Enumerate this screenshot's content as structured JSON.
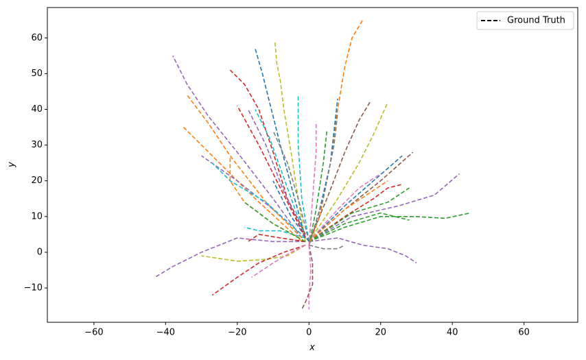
{
  "chart_data": {
    "type": "line",
    "xlabel": "x",
    "ylabel": "y",
    "line_style": "dashed",
    "xlim": [
      -73,
      75
    ],
    "ylim": [
      -19.6,
      68.5
    ],
    "xticks": [
      {
        "value": -60,
        "label": "−60"
      },
      {
        "value": -40,
        "label": "−40"
      },
      {
        "value": -20,
        "label": "−20"
      },
      0,
      20,
      40,
      60
    ],
    "yticks": [
      {
        "value": -10,
        "label": "−10"
      },
      0,
      10,
      20,
      30,
      40,
      50,
      60
    ],
    "legend": {
      "label": "Ground Truth",
      "color": "#000000",
      "position": "upper right"
    },
    "series": [
      {
        "color": "#ff7f0e",
        "x": [
          0,
          3,
          6,
          8,
          10,
          12,
          15
        ],
        "y": [
          2,
          10,
          25,
          40,
          52,
          60,
          65
        ]
      },
      {
        "color": "#bcbd22",
        "x": [
          -1,
          -3,
          -5,
          -7,
          -8,
          -9,
          -9.5
        ],
        "y": [
          3,
          15,
          28,
          40,
          48,
          53,
          59
        ]
      },
      {
        "color": "#1f77b4",
        "x": [
          -1,
          -4,
          -8,
          -11,
          -13,
          -15
        ],
        "y": [
          4,
          15,
          30,
          42,
          50,
          57
        ]
      },
      {
        "color": "#d62728",
        "x": [
          -1,
          -6,
          -10,
          -14,
          -18,
          -22
        ],
        "y": [
          5,
          15,
          28,
          40,
          47,
          51
        ]
      },
      {
        "color": "#9467bd",
        "x": [
          -2,
          -10,
          -20,
          -28,
          -34,
          -38
        ],
        "y": [
          4,
          15,
          28,
          38,
          47,
          55
        ]
      },
      {
        "color": "#ff7f0e",
        "x": [
          -2,
          -12,
          -22,
          -28,
          -34
        ],
        "y": [
          4,
          14,
          27,
          36,
          44
        ]
      },
      {
        "color": "#ff7f0e",
        "x": [
          -2,
          -15,
          -25,
          -35
        ],
        "y": [
          3,
          15,
          25,
          35
        ]
      },
      {
        "color": "#9467bd",
        "x": [
          -1,
          -10,
          -20,
          -30
        ],
        "y": [
          4,
          12,
          20,
          27
        ]
      },
      {
        "color": "#17becf",
        "x": [
          -1,
          -12,
          -22,
          -27
        ],
        "y": [
          4,
          14,
          20,
          25
        ]
      },
      {
        "color": "#9467bd",
        "x": [
          -1,
          -10,
          -20,
          -30,
          -38,
          -43
        ],
        "y": [
          3,
          3,
          4,
          0,
          -4,
          -7
        ]
      },
      {
        "color": "#bcbd22",
        "x": [
          -1,
          -6,
          -12,
          -20,
          -30
        ],
        "y": [
          2,
          -1,
          -2,
          -2.5,
          -1
        ]
      },
      {
        "color": "#d62728",
        "x": [
          -1,
          -7,
          -14,
          -20,
          -27
        ],
        "y": [
          2,
          0,
          -3,
          -7,
          -12
        ]
      },
      {
        "color": "#e377c2",
        "x": [
          -1,
          -5,
          -10,
          -16
        ],
        "y": [
          2,
          0,
          -3,
          -7
        ]
      },
      {
        "color": "#8c564b",
        "x": [
          0,
          1,
          1,
          -1,
          -2
        ],
        "y": [
          2,
          -3,
          -9,
          -14,
          -16
        ]
      },
      {
        "color": "#e377c2",
        "x": [
          0,
          0.5,
          0,
          0
        ],
        "y": [
          2,
          -5,
          -12,
          -16
        ]
      },
      {
        "color": "#9467bd",
        "x": [
          0,
          8,
          15,
          22,
          27,
          30
        ],
        "y": [
          3,
          4,
          2,
          1,
          -1,
          -3
        ]
      },
      {
        "color": "#7f7f7f",
        "x": [
          0,
          4,
          8,
          10
        ],
        "y": [
          2,
          1,
          1,
          2
        ]
      },
      {
        "color": "#2ca02c",
        "x": [
          0,
          10,
          20,
          30,
          38,
          45
        ],
        "y": [
          3,
          7,
          10,
          10,
          9.5,
          11
        ]
      },
      {
        "color": "#2ca02c",
        "x": [
          0,
          10,
          20,
          28
        ],
        "y": [
          3,
          8,
          11,
          9
        ]
      },
      {
        "color": "#9467bd",
        "x": [
          0,
          12,
          25,
          35,
          42
        ],
        "y": [
          3,
          10,
          13,
          16,
          22
        ]
      },
      {
        "color": "#d62728",
        "x": [
          0,
          10,
          18,
          22,
          26
        ],
        "y": [
          3,
          10,
          15,
          18,
          19
        ]
      },
      {
        "color": "#2ca02c",
        "x": [
          0,
          12,
          22,
          28
        ],
        "y": [
          3,
          11,
          14,
          18
        ]
      },
      {
        "color": "#8c564b",
        "x": [
          0,
          10,
          20,
          29
        ],
        "y": [
          3,
          12,
          20,
          28
        ]
      },
      {
        "color": "#1f77b4",
        "x": [
          0,
          10,
          18,
          26
        ],
        "y": [
          3,
          13,
          20,
          27
        ]
      },
      {
        "color": "#bcbd22",
        "x": [
          0,
          8,
          14,
          18,
          22
        ],
        "y": [
          3,
          15,
          25,
          33,
          42
        ]
      },
      {
        "color": "#8c564b",
        "x": [
          0,
          5,
          10,
          14,
          17
        ],
        "y": [
          3,
          15,
          28,
          37,
          42
        ]
      },
      {
        "color": "#1f77b4",
        "x": [
          0,
          3,
          6,
          8
        ],
        "y": [
          2,
          12,
          25,
          43
        ]
      },
      {
        "color": "#7f7f7f",
        "x": [
          0,
          4,
          7,
          8
        ],
        "y": [
          2,
          15,
          30,
          39
        ]
      },
      {
        "color": "#2ca02c",
        "x": [
          0,
          2,
          4,
          5
        ],
        "y": [
          2,
          12,
          25,
          34
        ]
      },
      {
        "color": "#e377c2",
        "x": [
          0,
          1,
          2,
          2
        ],
        "y": [
          2,
          15,
          28,
          36
        ]
      },
      {
        "color": "#17becf",
        "x": [
          0,
          -2,
          -3,
          -3
        ],
        "y": [
          3,
          15,
          30,
          44
        ]
      },
      {
        "color": "#17becf",
        "x": [
          -1,
          -6,
          -11,
          -15
        ],
        "y": [
          4,
          18,
          32,
          40
        ]
      },
      {
        "color": "#9467bd",
        "x": [
          -1,
          -7,
          -12,
          -17
        ],
        "y": [
          4,
          17,
          30,
          40
        ]
      },
      {
        "color": "#17becf",
        "x": [
          -1,
          -8,
          -14,
          -18
        ],
        "y": [
          4,
          6,
          6,
          7
        ]
      },
      {
        "color": "#ff7f0e",
        "x": [
          -1,
          -10,
          -18,
          -22,
          -22
        ],
        "y": [
          3,
          8,
          14,
          20,
          27
        ]
      },
      {
        "color": "#d62728",
        "x": [
          -1,
          -8,
          -14,
          -17
        ],
        "y": [
          3,
          4,
          5,
          3
        ]
      },
      {
        "color": "#e377c2",
        "x": [
          0,
          8,
          14,
          20
        ],
        "y": [
          3,
          12,
          18,
          22
        ]
      },
      {
        "color": "#ff7f0e",
        "x": [
          0,
          10,
          22
        ],
        "y": [
          3,
          12,
          20
        ]
      },
      {
        "color": "#7f7f7f",
        "x": [
          0,
          -3,
          -6,
          -10
        ],
        "y": [
          3,
          15,
          25,
          34
        ]
      },
      {
        "color": "#2ca02c",
        "x": [
          -1,
          -10,
          -18
        ],
        "y": [
          3,
          8,
          14
        ]
      },
      {
        "color": "#1f77b4",
        "x": [
          0,
          -5,
          -10
        ],
        "y": [
          3,
          10,
          20
        ]
      },
      {
        "color": "#d62728",
        "x": [
          -1,
          -8,
          -14,
          -20
        ],
        "y": [
          4,
          18,
          30,
          41
        ]
      }
    ]
  }
}
